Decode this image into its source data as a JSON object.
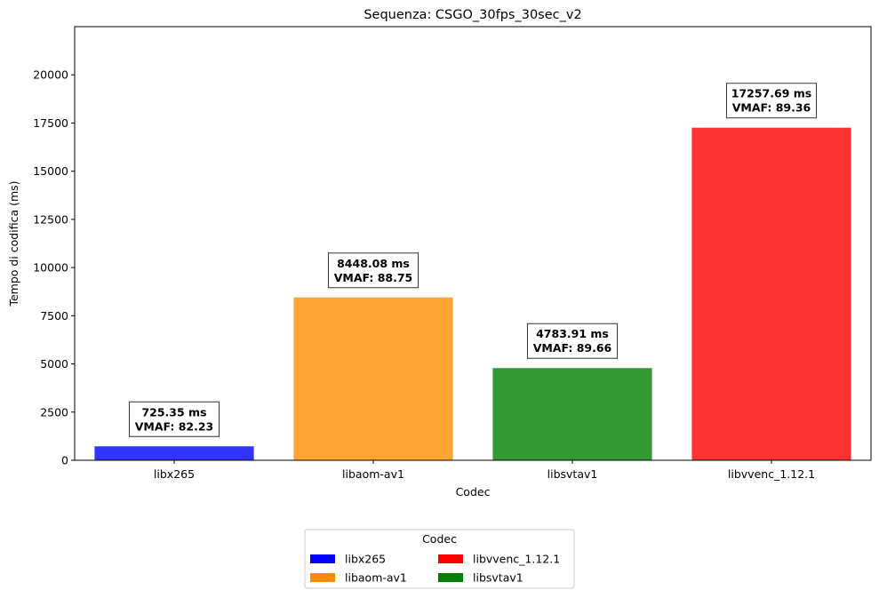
{
  "chart_data": {
    "type": "bar",
    "title": "Sequenza: CSGO_30fps_30sec_v2",
    "xlabel": "Codec",
    "ylabel": "Tempo di codifica (ms)",
    "ylim": [
      0,
      22500
    ],
    "yticks": [
      0,
      2500,
      5000,
      7500,
      10000,
      12500,
      15000,
      17500,
      20000
    ],
    "yticklabels": [
      "0",
      "2500",
      "5000",
      "7500",
      "10000",
      "12500",
      "15000",
      "17500",
      "20000"
    ],
    "categories": [
      "libx265",
      "libaom-av1",
      "libsvtav1",
      "libvvenc_1.12.1"
    ],
    "values": [
      725.35,
      8448.08,
      4783.91,
      17257.69
    ],
    "colors": [
      "#0000ff",
      "#ff8c00",
      "#008000",
      "#ff0000"
    ],
    "annotations": [
      {
        "line1": "725.35 ms",
        "line2": "VMAF: 82.23"
      },
      {
        "line1": "8448.08 ms",
        "line2": "VMAF: 88.75"
      },
      {
        "line1": "4783.91 ms",
        "line2": "VMAF: 89.66"
      },
      {
        "line1": "17257.69 ms",
        "line2": "VMAF: 89.36"
      }
    ],
    "grid": false,
    "legend": {
      "title": "Codec",
      "placement": "bottom-center",
      "entries": [
        {
          "label": "libx265",
          "color": "#0000ff"
        },
        {
          "label": "libvvenc_1.12.1",
          "color": "#ff0000"
        },
        {
          "label": "libaom-av1",
          "color": "#ff8c00"
        },
        {
          "label": "libsvtav1",
          "color": "#008000"
        }
      ]
    }
  }
}
